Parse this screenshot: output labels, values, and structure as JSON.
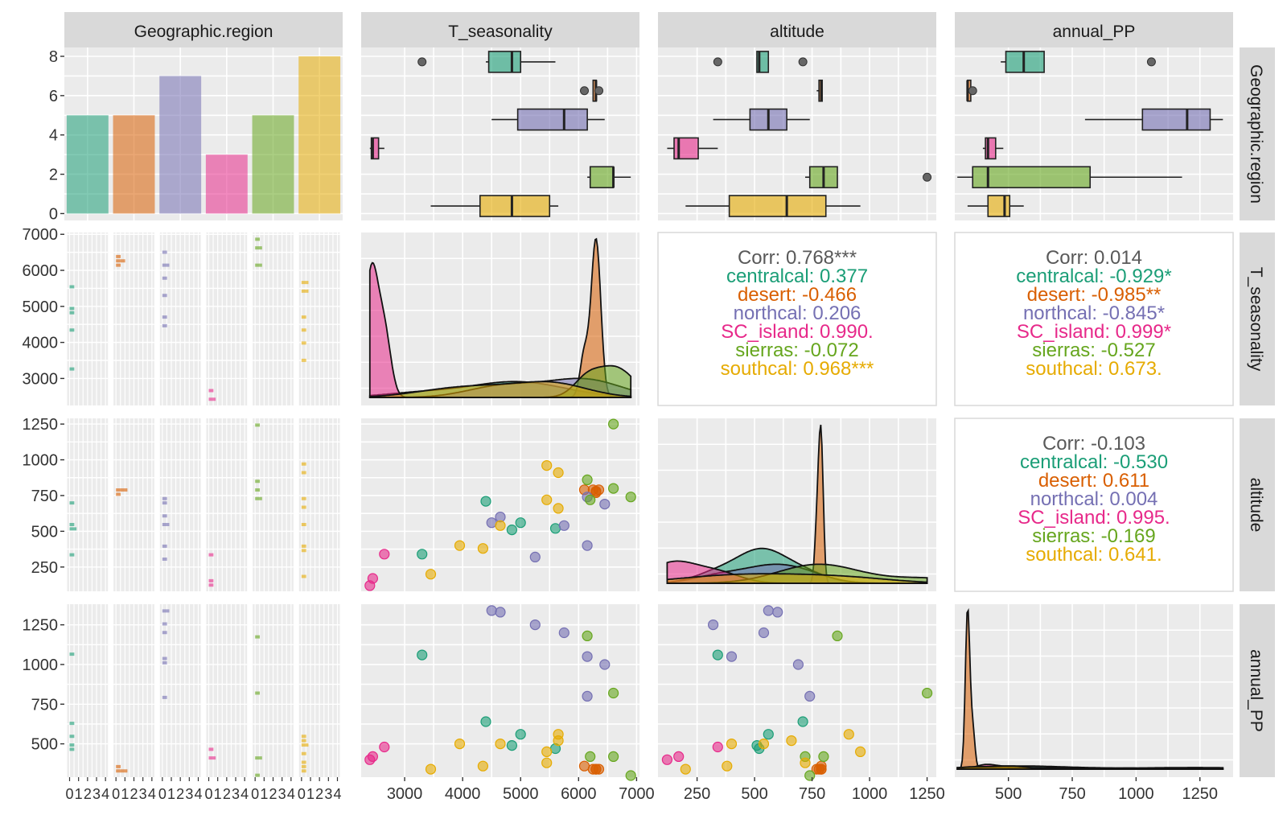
{
  "variables": [
    "Geographic.region",
    "T_seasonality",
    "altitude",
    "annual_PP"
  ],
  "groups": [
    "centralcal",
    "desert",
    "northcal",
    "SC_island",
    "sierras",
    "southcal"
  ],
  "colors": {
    "centralcal": "#1b9e77",
    "desert": "#d95f02",
    "northcal": "#7570b3",
    "SC_island": "#e7298a",
    "sierras": "#66a61e",
    "southcal": "#e6ab02",
    "panel_bg": "#ebebeb",
    "strip_bg": "#d9d9d9",
    "corr_overall": "#595959"
  },
  "chart_data": {
    "type": "pairs",
    "counts": {
      "centralcal": 5,
      "desert": 5,
      "northcal": 7,
      "SC_island": 3,
      "sierras": 5,
      "southcal": 8
    },
    "bar_ylim": [
      0,
      8
    ],
    "bar_yticks": [
      "0",
      "2",
      "4",
      "6",
      "8"
    ],
    "facet_xticks": [
      "0",
      "1",
      "2",
      "3",
      "4"
    ],
    "axes": {
      "T_seasonality": {
        "lim": [
          2250,
          7050
        ],
        "ticks": [
          "3000",
          "4000",
          "5000",
          "6000",
          "7000"
        ]
      },
      "altitude": {
        "lim": [
          80,
          1290
        ],
        "ticks": [
          "250",
          "500",
          "750",
          "1000",
          "1250"
        ]
      },
      "annual_PP": {
        "lim": [
          290,
          1380
        ],
        "ticks": [
          "500",
          "750",
          "1000",
          "1250"
        ]
      }
    },
    "records": {
      "centralcal": [
        [
          4400,
          710,
          640
        ],
        [
          5000,
          560,
          560
        ],
        [
          5600,
          520,
          470
        ],
        [
          3300,
          340,
          1060
        ],
        [
          4850,
          510,
          490
        ]
      ],
      "desert": [
        [
          6100,
          790,
          360
        ],
        [
          6250,
          790,
          340
        ],
        [
          6300,
          770,
          340
        ],
        [
          6350,
          790,
          340
        ],
        [
          6300,
          780,
          340
        ]
      ],
      "northcal": [
        [
          4500,
          560,
          1340
        ],
        [
          4650,
          600,
          1330
        ],
        [
          5250,
          320,
          1250
        ],
        [
          5750,
          540,
          1200
        ],
        [
          6150,
          400,
          1050
        ],
        [
          6450,
          690,
          1000
        ],
        [
          6150,
          740,
          800
        ]
      ],
      "SC_island": [
        [
          2400,
          120,
          400
        ],
        [
          2450,
          170,
          420
        ],
        [
          2650,
          340,
          480
        ]
      ],
      "sierras": [
        [
          6150,
          860,
          1180
        ],
        [
          6600,
          1250,
          820
        ],
        [
          6200,
          720,
          420
        ],
        [
          6900,
          740,
          300
        ],
        [
          6600,
          800,
          420
        ]
      ],
      "southcal": [
        [
          3450,
          200,
          340
        ],
        [
          3950,
          400,
          500
        ],
        [
          4350,
          380,
          360
        ],
        [
          4650,
          540,
          500
        ],
        [
          5450,
          960,
          450
        ],
        [
          5650,
          910,
          560
        ],
        [
          5650,
          660,
          520
        ],
        [
          5450,
          720,
          380
        ]
      ]
    },
    "boxplots": {
      "T_seasonality": {
        "centralcal": [
          4400,
          4450,
          4850,
          5000,
          5600,
          [
            3300
          ]
        ],
        "desert": [
          6250,
          6250,
          6300,
          6300,
          6300,
          [
            6100,
            6350
          ]
        ],
        "northcal": [
          4500,
          4950,
          5750,
          6150,
          6450,
          []
        ],
        "SC_island": [
          2400,
          2425,
          2450,
          2550,
          2650,
          []
        ],
        "sierras": [
          6150,
          6200,
          6600,
          6600,
          6900,
          []
        ],
        "southcal": [
          3450,
          4300,
          4850,
          5500,
          5650,
          []
        ]
      },
      "altitude": {
        "centralcal": [
          510,
          510,
          520,
          560,
          560,
          [
            340,
            710
          ]
        ],
        "desert": [
          770,
          780,
          790,
          790,
          790,
          []
        ],
        "northcal": [
          320,
          480,
          560,
          640,
          740,
          []
        ],
        "SC_island": [
          120,
          150,
          170,
          255,
          340,
          []
        ],
        "sierras": [
          720,
          740,
          800,
          860,
          860,
          [
            1250
          ]
        ],
        "southcal": [
          200,
          390,
          640,
          810,
          960,
          []
        ]
      },
      "annual_PP": {
        "centralcal": [
          470,
          490,
          560,
          640,
          640,
          [
            1060
          ]
        ],
        "desert": [
          340,
          340,
          340,
          350,
          350,
          [
            360
          ]
        ],
        "northcal": [
          800,
          1025,
          1200,
          1290,
          1340,
          []
        ],
        "SC_island": [
          400,
          410,
          420,
          450,
          480,
          []
        ],
        "sierras": [
          300,
          360,
          420,
          820,
          1180,
          []
        ],
        "southcal": [
          340,
          420,
          485,
          505,
          560,
          []
        ]
      }
    },
    "density_peaks": {
      "T_seasonality": {
        "SC_island": 0.85,
        "desert": 1.0,
        "centralcal": 0.1,
        "northcal": 0.12,
        "sierras": 0.2,
        "southcal": 0.1
      },
      "altitude": {
        "desert": 1.0,
        "centralcal": 0.22,
        "northcal": 0.12,
        "SC_island": 0.14,
        "sierras": 0.12,
        "southcal": 0.06
      },
      "annual_PP": {
        "desert": 1.0,
        "centralcal": 0.02,
        "northcal": 0.01,
        "SC_island": 0.03,
        "sierras": 0.01,
        "southcal": 0.02
      }
    },
    "correlations": [
      {
        "pair": "T_seasonality-altitude",
        "lines": [
          "Corr: 0.768***",
          "centralcal: 0.377",
          "desert: -0.466",
          "northcal: 0.206",
          "SC_island: 0.990.",
          "sierras: -0.072",
          "southcal: 0.968***"
        ]
      },
      {
        "pair": "T_seasonality-annual_PP",
        "lines": [
          "Corr: 0.014",
          "centralcal: -0.929*",
          "desert: -0.985**",
          "northcal: -0.845*",
          "SC_island: 0.999*",
          "sierras: -0.527",
          "southcal: 0.673."
        ]
      },
      {
        "pair": "altitude-annual_PP",
        "lines": [
          "Corr: -0.103",
          "centralcal: -0.530",
          "desert: 0.611",
          "northcal: 0.004",
          "SC_island: 0.995.",
          "sierras: -0.169",
          "southcal: 0.641."
        ]
      }
    ]
  }
}
